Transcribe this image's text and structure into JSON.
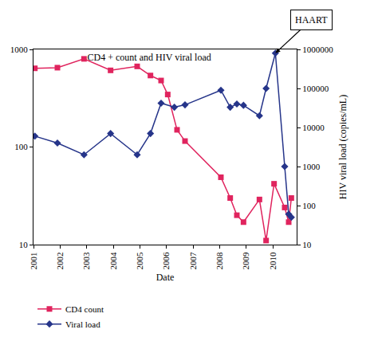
{
  "chart_data": {
    "type": "line",
    "title": "CD4 + count and HIV viral load",
    "x_label": "Date",
    "y2_label": "HIV viral load (copies/mL)",
    "log": "y",
    "grid": false,
    "legend": "bottom left",
    "xlim": [
      2001,
      2010.9
    ],
    "xticks": [
      2001,
      2002,
      2003,
      2004,
      2005,
      2006,
      2007,
      2008,
      2009,
      2010
    ],
    "ylim": [
      10,
      1000
    ],
    "yticks": [
      10,
      100,
      1000
    ],
    "y2lim": [
      10,
      1000000
    ],
    "y2ticks": [
      10,
      100,
      1000,
      10000,
      100000,
      1000000
    ],
    "series": [
      {
        "name": "CD4 count",
        "color": "#e0245e",
        "marker": "square",
        "line_style": "solid",
        "x": [
          2001.05,
          2001.9,
          2002.9,
          2003.9,
          2004.9,
          2005.4,
          2005.8,
          2006.05,
          2006.4,
          2006.7,
          2008.05,
          2008.4,
          2008.65,
          2008.9,
          2009.5,
          2009.75,
          2010.05,
          2010.45,
          2010.6,
          2010.7
        ],
        "values": [
          640,
          650,
          800,
          610,
          670,
          540,
          480,
          345,
          150,
          115,
          49,
          30,
          20,
          17,
          29,
          11,
          42,
          24,
          17,
          30
        ]
      },
      {
        "name": "Viral load",
        "color": "#26358a",
        "marker": "diamond",
        "line_style": "solid",
        "axis": "y2",
        "x": [
          2001.05,
          2001.9,
          2002.9,
          2003.9,
          2004.9,
          2005.4,
          2005.8,
          2006.3,
          2006.7,
          2008.05,
          2008.4,
          2008.65,
          2008.9,
          2009.5,
          2009.75,
          2010.1,
          2010.45,
          2010.6,
          2010.7
        ],
        "values": [
          6000,
          4000,
          2000,
          7000,
          2000,
          7000,
          42000,
          33000,
          38000,
          90000,
          33000,
          40000,
          37000,
          20000,
          100000,
          800000,
          1000,
          60,
          50
        ]
      }
    ],
    "annotations": [
      {
        "text": "HAART",
        "x": 2010.1,
        "y": 800000,
        "axis": "y2"
      }
    ]
  }
}
